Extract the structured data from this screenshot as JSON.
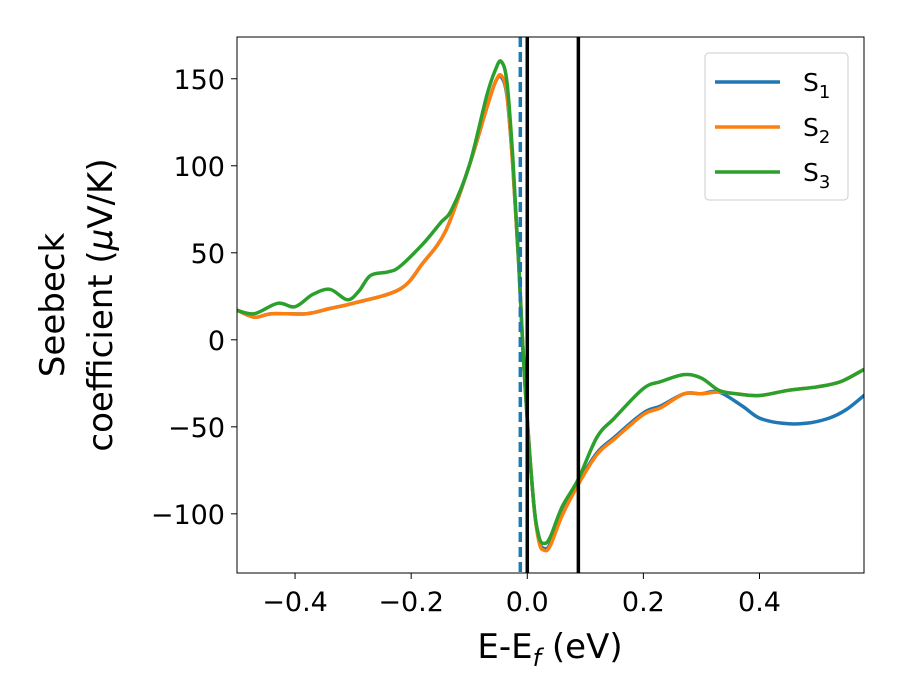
{
  "chart_data": {
    "type": "line",
    "title": "",
    "xlabel": {
      "main": "E-E",
      "sub": "f",
      "suffix": " (eV)"
    },
    "ylabel": {
      "line1": "Seebeck",
      "line2_prefix": "coefficient  (",
      "line2_mu": "μ",
      "line2_suffix": "V/K)"
    },
    "xlim": [
      -0.5,
      0.58
    ],
    "ylim": [
      -134,
      174
    ],
    "xticks": [
      -0.4,
      -0.2,
      0.0,
      0.2,
      0.4
    ],
    "xtick_labels": [
      "−0.4",
      "−0.2",
      "0.0",
      "0.2",
      "0.4"
    ],
    "yticks": [
      -100,
      -50,
      0,
      50,
      100,
      150
    ],
    "ytick_labels": [
      "−100",
      "−50",
      "0",
      "50",
      "100",
      "150"
    ],
    "grid": false,
    "legend_position": "top-right",
    "vlines": [
      {
        "x": -0.012,
        "style": "dashed",
        "color": "#1f77b4"
      },
      {
        "x": 0.0,
        "style": "solid",
        "color": "#000000"
      },
      {
        "x": 0.088,
        "style": "solid",
        "color": "#000000"
      }
    ],
    "series": [
      {
        "name": "S",
        "sub": "1",
        "color": "#1f77b4",
        "points": [
          [
            -0.5,
            17
          ],
          [
            -0.47,
            13
          ],
          [
            -0.44,
            15
          ],
          [
            -0.38,
            15
          ],
          [
            -0.34,
            18
          ],
          [
            -0.3,
            21
          ],
          [
            -0.22,
            29
          ],
          [
            -0.18,
            44
          ],
          [
            -0.14,
            63
          ],
          [
            -0.1,
            100
          ],
          [
            -0.07,
            133
          ],
          [
            -0.055,
            148
          ],
          [
            -0.045,
            151
          ],
          [
            -0.035,
            140
          ],
          [
            -0.025,
            100
          ],
          [
            -0.015,
            45
          ],
          [
            -0.005,
            -20
          ],
          [
            0.01,
            -90
          ],
          [
            0.02,
            -115
          ],
          [
            0.03,
            -120
          ],
          [
            0.04,
            -117
          ],
          [
            0.06,
            -100
          ],
          [
            0.088,
            -82
          ],
          [
            0.12,
            -65
          ],
          [
            0.15,
            -56
          ],
          [
            0.2,
            -42
          ],
          [
            0.23,
            -38
          ],
          [
            0.27,
            -31
          ],
          [
            0.3,
            -31
          ],
          [
            0.33,
            -30
          ],
          [
            0.37,
            -38
          ],
          [
            0.4,
            -45
          ],
          [
            0.44,
            -48
          ],
          [
            0.48,
            -48
          ],
          [
            0.52,
            -45
          ],
          [
            0.55,
            -40
          ],
          [
            0.58,
            -32
          ]
        ]
      },
      {
        "name": "S",
        "sub": "2",
        "color": "#ff7f0e",
        "points": [
          [
            -0.5,
            17
          ],
          [
            -0.47,
            13
          ],
          [
            -0.44,
            15
          ],
          [
            -0.38,
            15
          ],
          [
            -0.34,
            18
          ],
          [
            -0.3,
            21
          ],
          [
            -0.22,
            29
          ],
          [
            -0.18,
            44
          ],
          [
            -0.14,
            63
          ],
          [
            -0.1,
            100
          ],
          [
            -0.07,
            133
          ],
          [
            -0.055,
            148
          ],
          [
            -0.045,
            152
          ],
          [
            -0.035,
            141
          ],
          [
            -0.025,
            100
          ],
          [
            -0.015,
            45
          ],
          [
            -0.005,
            -20
          ],
          [
            0.01,
            -90
          ],
          [
            0.02,
            -116
          ],
          [
            0.03,
            -121
          ],
          [
            0.04,
            -118
          ],
          [
            0.06,
            -101
          ],
          [
            0.088,
            -83
          ],
          [
            0.12,
            -66
          ],
          [
            0.15,
            -57
          ],
          [
            0.2,
            -43
          ],
          [
            0.23,
            -39
          ],
          [
            0.27,
            -31
          ],
          [
            0.3,
            -31
          ],
          [
            0.33,
            -30
          ],
          [
            0.36,
            -31
          ],
          [
            0.4,
            -32
          ],
          [
            0.45,
            -29
          ],
          [
            0.5,
            -27
          ],
          [
            0.54,
            -24
          ],
          [
            0.58,
            -17
          ]
        ]
      },
      {
        "name": "S",
        "sub": "3",
        "color": "#2ca02c",
        "points": [
          [
            -0.5,
            17
          ],
          [
            -0.47,
            15
          ],
          [
            -0.43,
            21
          ],
          [
            -0.4,
            19
          ],
          [
            -0.37,
            26
          ],
          [
            -0.34,
            29
          ],
          [
            -0.31,
            23
          ],
          [
            -0.29,
            28
          ],
          [
            -0.27,
            37
          ],
          [
            -0.24,
            39
          ],
          [
            -0.22,
            42
          ],
          [
            -0.18,
            55
          ],
          [
            -0.15,
            67
          ],
          [
            -0.13,
            75
          ],
          [
            -0.1,
            100
          ],
          [
            -0.07,
            140
          ],
          [
            -0.055,
            155
          ],
          [
            -0.045,
            160
          ],
          [
            -0.035,
            148
          ],
          [
            -0.025,
            105
          ],
          [
            -0.015,
            45
          ],
          [
            -0.005,
            -20
          ],
          [
            0.01,
            -90
          ],
          [
            0.02,
            -113
          ],
          [
            0.03,
            -117
          ],
          [
            0.04,
            -113
          ],
          [
            0.06,
            -96
          ],
          [
            0.088,
            -80
          ],
          [
            0.12,
            -56
          ],
          [
            0.15,
            -45
          ],
          [
            0.2,
            -28
          ],
          [
            0.23,
            -24
          ],
          [
            0.27,
            -20
          ],
          [
            0.3,
            -22
          ],
          [
            0.33,
            -29
          ],
          [
            0.36,
            -31
          ],
          [
            0.4,
            -32
          ],
          [
            0.45,
            -29
          ],
          [
            0.5,
            -27
          ],
          [
            0.54,
            -24
          ],
          [
            0.58,
            -17
          ]
        ]
      }
    ]
  }
}
